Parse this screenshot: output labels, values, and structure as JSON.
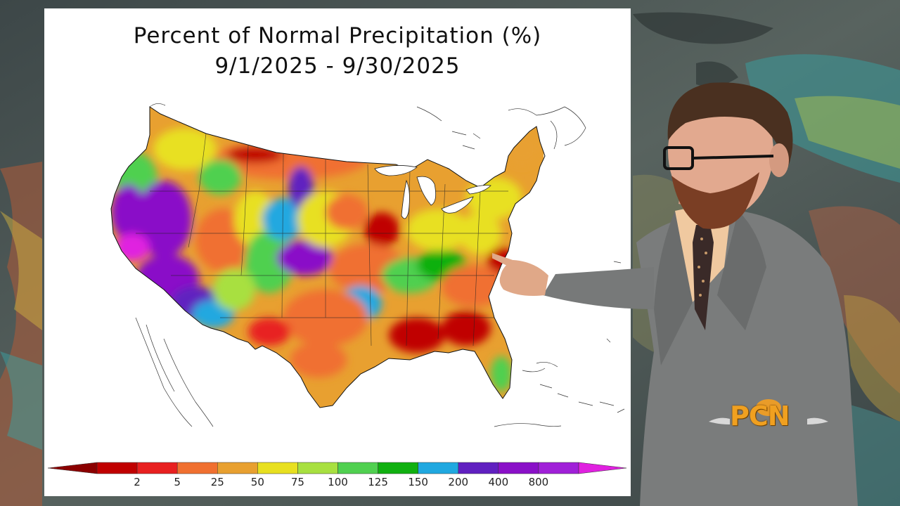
{
  "map": {
    "title_line1": "Percent of Normal Precipitation (%)",
    "title_line2": "9/1/2025 - 9/30/2025"
  },
  "legend": {
    "colors": [
      "#8b0000",
      "#c00000",
      "#e82020",
      "#f07030",
      "#e8a030",
      "#e8e020",
      "#a8e040",
      "#50d050",
      "#10b010",
      "#20a8e0",
      "#6020c0",
      "#8a10c8",
      "#a020d8",
      "#e020e0"
    ],
    "labels": [
      "2",
      "5",
      "25",
      "50",
      "75",
      "100",
      "125",
      "150",
      "200",
      "400",
      "800"
    ]
  },
  "broadcaster": {
    "logo": "PCN"
  }
}
